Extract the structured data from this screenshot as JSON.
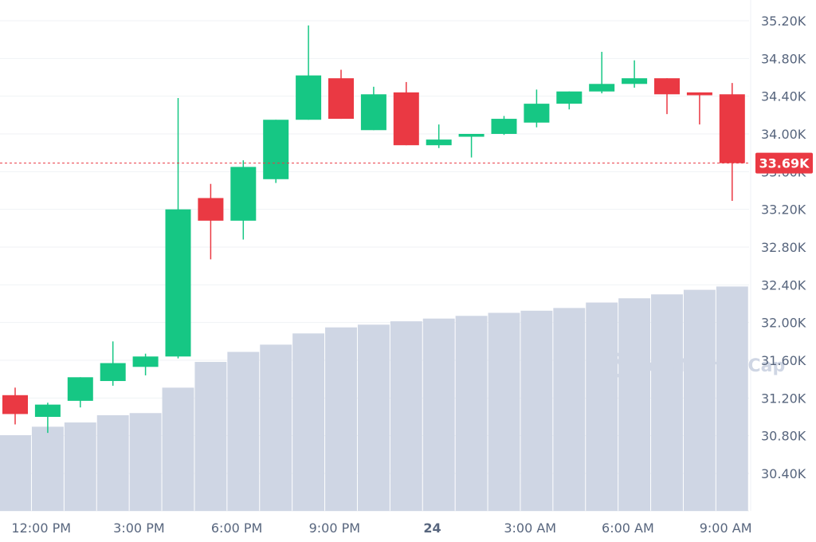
{
  "watermark": {
    "text": "CoinMarketCap",
    "icon": "coinmarketcap-logo-icon"
  },
  "colors": {
    "up": "#16c784",
    "down": "#ea3943",
    "volume": "#cfd6e4",
    "grid": "#eff2f5",
    "price_line": "#ea3943",
    "text": "#58667e"
  },
  "chart_data": {
    "type": "candlestick",
    "title": "",
    "xlabel": "",
    "ylabel": "",
    "ylim": [
      30000,
      35300
    ],
    "grid": true,
    "legend": "none",
    "y_ticks": [
      30400,
      30800,
      31200,
      31600,
      32000,
      32400,
      32800,
      33200,
      33600,
      34000,
      34400,
      34800,
      35200
    ],
    "y_tick_labels": [
      "30.40K",
      "30.80K",
      "31.20K",
      "31.60K",
      "32.00K",
      "32.40K",
      "32.80K",
      "33.20K",
      "33.60K",
      "34.00K",
      "34.40K",
      "34.80K",
      "35.20K"
    ],
    "x_tick_labels": [
      {
        "label": "12:00 PM",
        "index": 0.8
      },
      {
        "label": "3:00 PM",
        "index": 3.8
      },
      {
        "label": "6:00 PM",
        "index": 6.8
      },
      {
        "label": "9:00 PM",
        "index": 9.8
      },
      {
        "label": "24",
        "index": 12.8,
        "bold": true
      },
      {
        "label": "3:00 AM",
        "index": 15.8
      },
      {
        "label": "6:00 AM",
        "index": 18.8
      },
      {
        "label": "9:00 AM",
        "index": 21.8
      }
    ],
    "current_price": 33690,
    "current_price_label": "33.69K",
    "candles": [
      {
        "o": 31230,
        "h": 31310,
        "l": 30920,
        "c": 31030
      },
      {
        "o": 31000,
        "h": 31150,
        "l": 30830,
        "c": 31130
      },
      {
        "o": 31170,
        "h": 31420,
        "l": 31100,
        "c": 31420
      },
      {
        "o": 31380,
        "h": 31800,
        "l": 31330,
        "c": 31570
      },
      {
        "o": 31530,
        "h": 31670,
        "l": 31440,
        "c": 31640
      },
      {
        "o": 31640,
        "h": 34380,
        "l": 31620,
        "c": 33200
      },
      {
        "o": 33320,
        "h": 33470,
        "l": 32670,
        "c": 33080
      },
      {
        "o": 33080,
        "h": 33720,
        "l": 32880,
        "c": 33650
      },
      {
        "o": 33520,
        "h": 34150,
        "l": 33480,
        "c": 34150
      },
      {
        "o": 34150,
        "h": 35150,
        "l": 34150,
        "c": 34620
      },
      {
        "o": 34590,
        "h": 34680,
        "l": 34160,
        "c": 34160
      },
      {
        "o": 34040,
        "h": 34500,
        "l": 34040,
        "c": 34420
      },
      {
        "o": 34440,
        "h": 34550,
        "l": 33880,
        "c": 33880
      },
      {
        "o": 33880,
        "h": 34100,
        "l": 33850,
        "c": 33940
      },
      {
        "o": 33970,
        "h": 34000,
        "l": 33750,
        "c": 34000
      },
      {
        "o": 34000,
        "h": 34190,
        "l": 33990,
        "c": 34160
      },
      {
        "o": 34120,
        "h": 34470,
        "l": 34070,
        "c": 34320
      },
      {
        "o": 34320,
        "h": 34450,
        "l": 34260,
        "c": 34450
      },
      {
        "o": 34450,
        "h": 34870,
        "l": 34430,
        "c": 34530
      },
      {
        "o": 34530,
        "h": 34780,
        "l": 34490,
        "c": 34590
      },
      {
        "o": 34590,
        "h": 34590,
        "l": 34210,
        "c": 34420
      },
      {
        "o": 34440,
        "h": 34440,
        "l": 34100,
        "c": 34410
      },
      {
        "o": 34420,
        "h": 34540,
        "l": 33290,
        "c": 33690
      }
    ],
    "volumes": [
      0.25,
      0.278,
      0.292,
      0.316,
      0.323,
      0.407,
      0.492,
      0.525,
      0.549,
      0.586,
      0.606,
      0.615,
      0.626,
      0.635,
      0.644,
      0.654,
      0.661,
      0.67,
      0.688,
      0.702,
      0.715,
      0.73,
      0.741
    ]
  }
}
